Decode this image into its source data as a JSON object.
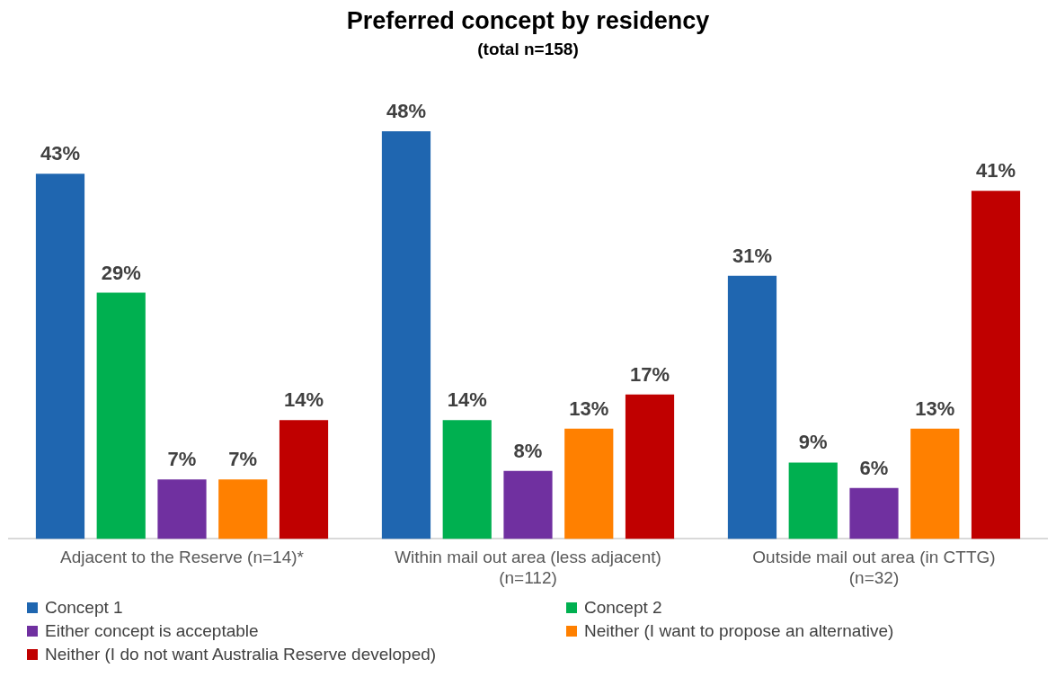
{
  "chart_data": {
    "type": "bar",
    "title": "Preferred concept by residency",
    "subtitle": "(total n=158)",
    "categories": [
      "Adjacent to the Reserve (n=14)*",
      "Within mail out area (less adjacent) (n=112)",
      "Outside mail out area (in CTTG) (n=32)"
    ],
    "series": [
      {
        "name": "Concept 1",
        "color": "#1f66b0",
        "values": [
          43,
          48,
          31
        ],
        "value_labels": [
          "43%",
          "48%",
          "31%"
        ]
      },
      {
        "name": "Concept 2",
        "color": "#00b050",
        "values": [
          29,
          14,
          9
        ],
        "value_labels": [
          "29%",
          "14%",
          "9%"
        ]
      },
      {
        "name": "Either concept is acceptable",
        "color": "#7030a0",
        "values": [
          7,
          8,
          6
        ],
        "value_labels": [
          "7%",
          "8%",
          "6%"
        ]
      },
      {
        "name": "Neither (I want to propose an alternative)",
        "color": "#ff8000",
        "values": [
          7,
          13,
          13
        ],
        "value_labels": [
          "7%",
          "13%",
          "13%"
        ]
      },
      {
        "name": "Neither (I do not want Australia Reserve developed)",
        "color": "#c00000",
        "values": [
          14,
          17,
          41
        ],
        "value_labels": [
          "14%",
          "17%",
          "41%"
        ]
      }
    ],
    "legend": "bottom",
    "grid": false
  }
}
